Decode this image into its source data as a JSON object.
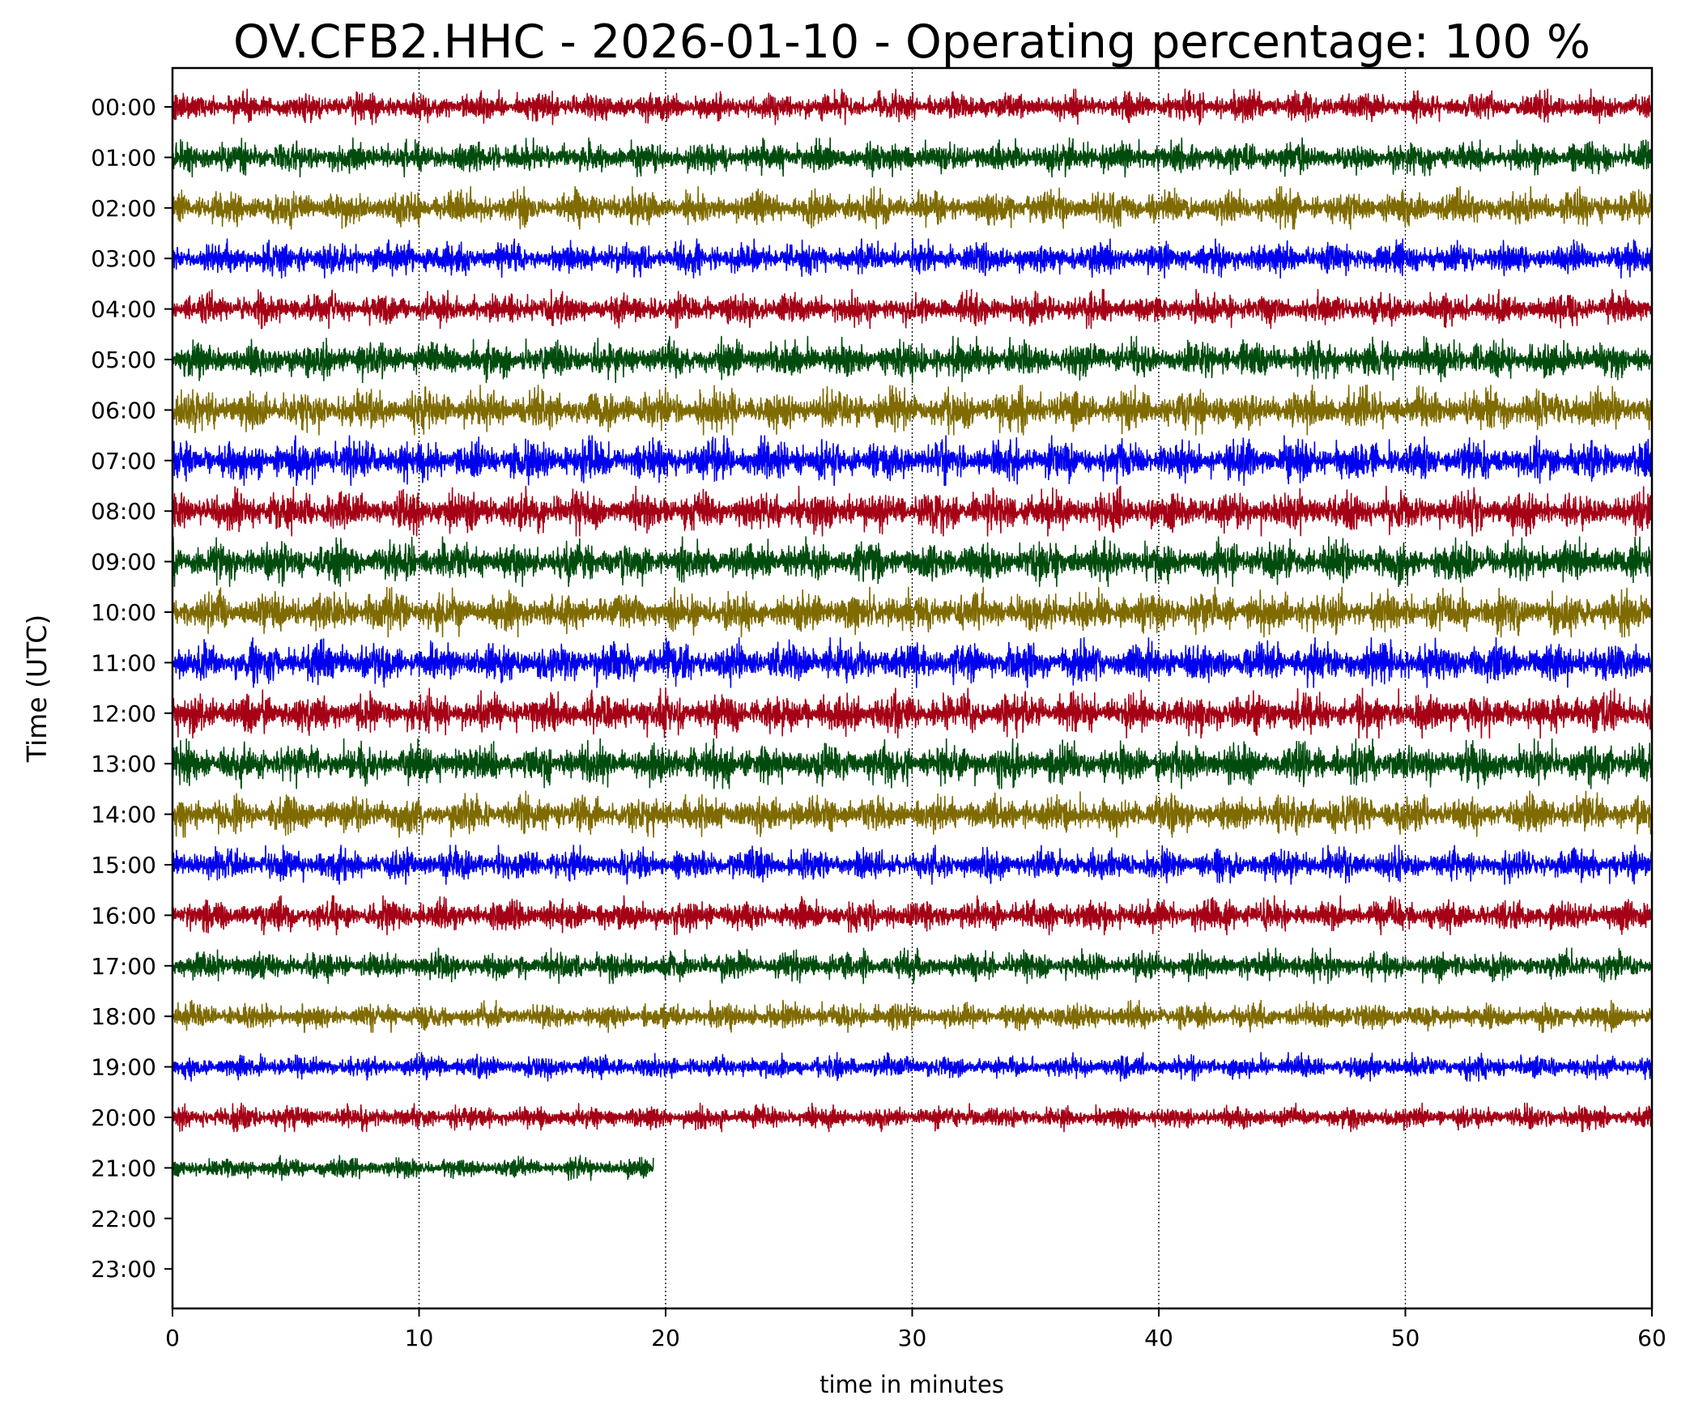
{
  "chart_data": {
    "type": "line",
    "title": "OV.CFB2.HHC - 2026-01-10 - Operating percentage: 100 %",
    "xlabel": "time in minutes",
    "ylabel": "Time (UTC)",
    "xlim": [
      0,
      60
    ],
    "x_ticks": [
      "0",
      "10",
      "20",
      "30",
      "40",
      "50",
      "60"
    ],
    "y_ticks": [
      "00:00",
      "01:00",
      "02:00",
      "03:00",
      "04:00",
      "05:00",
      "06:00",
      "07:00",
      "08:00",
      "09:00",
      "10:00",
      "11:00",
      "12:00",
      "13:00",
      "14:00",
      "15:00",
      "16:00",
      "17:00",
      "18:00",
      "19:00",
      "20:00",
      "21:00",
      "22:00",
      "23:00"
    ],
    "grid": "vertical dotted lines at x ticks",
    "colors": [
      "#a50016",
      "#004c0e",
      "#7f6b00",
      "#0000f0"
    ],
    "rows": [
      {
        "hour": "00:00",
        "end_minute": 60,
        "amplitude": 0.5
      },
      {
        "hour": "01:00",
        "end_minute": 60,
        "amplitude": 0.55
      },
      {
        "hour": "02:00",
        "end_minute": 60,
        "amplitude": 0.6
      },
      {
        "hour": "03:00",
        "end_minute": 60,
        "amplitude": 0.55
      },
      {
        "hour": "04:00",
        "end_minute": 60,
        "amplitude": 0.55
      },
      {
        "hour": "05:00",
        "end_minute": 60,
        "amplitude": 0.65
      },
      {
        "hour": "06:00",
        "end_minute": 60,
        "amplitude": 0.7
      },
      {
        "hour": "07:00",
        "end_minute": 60,
        "amplitude": 0.7
      },
      {
        "hour": "08:00",
        "end_minute": 60,
        "amplitude": 0.7
      },
      {
        "hour": "09:00",
        "end_minute": 60,
        "amplitude": 0.7
      },
      {
        "hour": "10:00",
        "end_minute": 60,
        "amplitude": 0.7
      },
      {
        "hour": "11:00",
        "end_minute": 60,
        "amplitude": 0.7
      },
      {
        "hour": "12:00",
        "end_minute": 60,
        "amplitude": 0.7
      },
      {
        "hour": "13:00",
        "end_minute": 60,
        "amplitude": 0.7
      },
      {
        "hour": "14:00",
        "end_minute": 60,
        "amplitude": 0.65
      },
      {
        "hour": "15:00",
        "end_minute": 60,
        "amplitude": 0.55
      },
      {
        "hour": "16:00",
        "end_minute": 60,
        "amplitude": 0.55
      },
      {
        "hour": "17:00",
        "end_minute": 60,
        "amplitude": 0.5
      },
      {
        "hour": "18:00",
        "end_minute": 60,
        "amplitude": 0.45
      },
      {
        "hour": "19:00",
        "end_minute": 60,
        "amplitude": 0.4
      },
      {
        "hour": "20:00",
        "end_minute": 60,
        "amplitude": 0.4
      },
      {
        "hour": "21:00",
        "end_minute": 19.5,
        "amplitude": 0.35
      }
    ]
  }
}
